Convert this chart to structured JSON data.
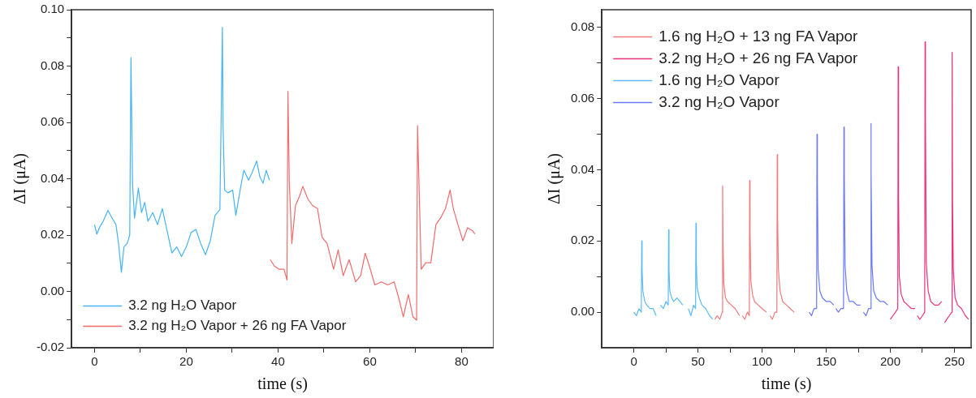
{
  "chart_data": [
    {
      "type": "line",
      "xlabel": "time (s)",
      "ylabel": "ΔI (μA)",
      "xlim": [
        -5,
        87
      ],
      "ylim": [
        -0.02,
        0.1
      ],
      "xticks": [
        0,
        {
          "value": 10,
          "label": null
        },
        20,
        {
          "value": 30,
          "label": null
        },
        40,
        {
          "value": 50,
          "label": null
        },
        60,
        {
          "value": 70,
          "label": null
        },
        80
      ],
      "yticks": [
        {
          "value": -0.02,
          "label": "-0.02"
        },
        {
          "value": -0.01,
          "label": null
        },
        {
          "value": 0,
          "label": "0.00"
        },
        {
          "value": 0.01,
          "label": null
        },
        {
          "value": 0.02,
          "label": "0.02"
        },
        {
          "value": 0.03,
          "label": null
        },
        {
          "value": 0.04,
          "label": "0.04"
        },
        {
          "value": 0.05,
          "label": null
        },
        {
          "value": 0.06,
          "label": "0.06"
        },
        {
          "value": 0.07,
          "label": null
        },
        {
          "value": 0.08,
          "label": "0.08"
        },
        {
          "value": 0.09,
          "label": null
        },
        {
          "value": 0.1,
          "label": "0.10"
        }
      ],
      "grid": false,
      "legend": "bottom left",
      "marker": "none",
      "line_style": "solid",
      "series": [
        {
          "name": "3.2 ng H₂O Vapor",
          "color": "#45b4f5",
          "x": [
            0,
            0.49,
            1.18,
            1.88,
            2.93,
            3.62,
            4.67,
            5.23,
            5.85,
            6.41,
            7.11,
            7.67,
            7.94,
            8.08,
            8.29,
            8.71,
            9.55,
            10.24,
            10.94,
            11.64,
            12.68,
            13.73,
            14.77,
            15.82,
            16.86,
            17.91,
            18.95,
            20,
            21.05,
            22.09,
            23.14,
            24.18,
            25.23,
            26.27,
            27.32,
            27.87,
            28.01,
            28.36,
            29.06,
            30.1,
            30.8,
            31.85,
            32.54,
            33.59,
            34.29,
            35.33,
            36.03,
            36.72,
            37.42,
            38.12
          ],
          "values": [
            0.0237,
            0.0203,
            0.023,
            0.0249,
            0.0288,
            0.0266,
            0.0237,
            0.017,
            0.0068,
            0.0158,
            0.017,
            0.02,
            0.083,
            0.0644,
            0.038,
            0.026,
            0.0367,
            0.028,
            0.0316,
            0.0249,
            0.028,
            0.0237,
            0.0294,
            0.0215,
            0.0136,
            0.0158,
            0.0124,
            0.0158,
            0.0209,
            0.022,
            0.017,
            0.013,
            0.018,
            0.027,
            0.029,
            0.0938,
            0.0588,
            0.036,
            0.035,
            0.036,
            0.027,
            0.037,
            0.043,
            0.0395,
            0.042,
            0.0463,
            0.0407,
            0.0384,
            0.043,
            0.0395
          ]
        },
        {
          "name": "3.2 ng H₂O Vapor + 26 ng FA Vapor",
          "color": "#f26c6c",
          "x": [
            38.3,
            39.2,
            40.2,
            41.3,
            41.95,
            42.16,
            42.44,
            43,
            43.8,
            44.7,
            45.4,
            46.5,
            47.5,
            48.6,
            49.6,
            50.7,
            52.1,
            53.1,
            54.2,
            55.5,
            56.9,
            58,
            59,
            60.1,
            61.1,
            62.5,
            63.9,
            65.3,
            66.3,
            67.3,
            68.4,
            69.4,
            70.2,
            70.4,
            70.7,
            71.2,
            72.2,
            73.3,
            74.4,
            75.4,
            76.5,
            77.5,
            78.2,
            79.2,
            80.3,
            81.3,
            82.4,
            82.9
          ],
          "values": [
            0.0113,
            0.009,
            0.0079,
            0.0079,
            0.004,
            0.071,
            0.0395,
            0.017,
            0.0305,
            0.0339,
            0.0373,
            0.0328,
            0.0305,
            0.0294,
            0.0192,
            0.017,
            0.0079,
            0.0147,
            0.0056,
            0.0113,
            0.0034,
            0.0056,
            0.0136,
            0.0079,
            0.0023,
            0.0034,
            0.0023,
            0.0034,
            -0.0023,
            -0.009,
            -0.0011,
            -0.009,
            -0.0102,
            0.0588,
            0.0395,
            0.0079,
            0.0102,
            0.0102,
            0.0237,
            0.026,
            0.0294,
            0.036,
            0.0294,
            0.0237,
            0.018,
            0.0226,
            0.0215,
            0.0204
          ]
        }
      ]
    },
    {
      "type": "line",
      "xlabel": "time (s)",
      "ylabel": "ΔI (μA)",
      "xlim": [
        -25,
        263
      ],
      "ylim": [
        -0.01,
        0.085
      ],
      "xticks": [
        0,
        {
          "value": 25,
          "label": null
        },
        50,
        {
          "value": 75,
          "label": null
        },
        100,
        {
          "value": 125,
          "label": null
        },
        150,
        {
          "value": 175,
          "label": null
        },
        200,
        {
          "value": 225,
          "label": null
        },
        250
      ],
      "yticks": [
        {
          "value": 0,
          "label": "0.00"
        },
        {
          "value": 0.01,
          "label": null
        },
        {
          "value": 0.02,
          "label": "0.02"
        },
        {
          "value": 0.03,
          "label": null
        },
        {
          "value": 0.04,
          "label": "0.04"
        },
        {
          "value": 0.05,
          "label": null
        },
        {
          "value": 0.06,
          "label": "0.06"
        },
        {
          "value": 0.07,
          "label": null
        },
        {
          "value": 0.08,
          "label": "0.08"
        }
      ],
      "grid": false,
      "legend": "top left",
      "marker": "none",
      "line_style": "solid",
      "series": [
        {
          "name": "1.6 ng H₂O + 13 ng FA Vapor",
          "color": "#f47a7a",
          "x": [
            63.1,
            65,
            67,
            68.9,
            69.2,
            69.5,
            70.1,
            71.5,
            73,
            76,
            79,
            82.4,
            83.5,
            84.6,
            86.5,
            88.5,
            90,
            90.3,
            90.6,
            91.2,
            92.5,
            94,
            97,
            100,
            103.4,
            104.7,
            106.1,
            108,
            110,
            111.5,
            111.8,
            112.1,
            112.7,
            114,
            116,
            119,
            122,
            124.9
          ],
          "values": [
            -0.002,
            -0.001,
            -0.002,
            0,
            0.0355,
            0.02,
            0.008,
            0.004,
            0.003,
            0.002,
            0.001,
            -0.001,
            null,
            -0.001,
            -0.002,
            0,
            -0.001,
            0.037,
            0.022,
            0.009,
            0.005,
            0.003,
            0.002,
            0.001,
            0,
            null,
            -0.001,
            -0.002,
            0,
            0,
            0.0443,
            0.026,
            0.012,
            0.006,
            0.003,
            0.002,
            0.001,
            0
          ]
        },
        {
          "name": "3.2 ng H₂O + 26 ng FA Vapor",
          "color": "#f0307e",
          "x": [
            200,
            202,
            204,
            205.8,
            206.1,
            206.4,
            207,
            208.5,
            210.5,
            213.5,
            216.5,
            219.2,
            220.1,
            221,
            223,
            225,
            226.8,
            227.1,
            227.4,
            228,
            229.5,
            231.5,
            234.5,
            237.5,
            240,
            241.2,
            242.3,
            244,
            246,
            247.9,
            248.2,
            248.5,
            249.1,
            250.5,
            252.5,
            255.5,
            258.5,
            261
          ],
          "values": [
            -0.002,
            -0.001,
            0,
            0.001,
            0.069,
            0.033,
            0.01,
            0.005,
            0.003,
            0.002,
            0.001,
            0.001,
            null,
            -0.001,
            -0.002,
            -0.001,
            0,
            0.076,
            0.054,
            0.014,
            0.006,
            0.003,
            0.002,
            0.002,
            0.003,
            null,
            -0.003,
            -0.002,
            -0.001,
            0,
            0.073,
            0.031,
            0.012,
            0.004,
            0.002,
            0.001,
            -0.001,
            -0.002
          ]
        },
        {
          "name": "1.6 ng H₂O Vapor",
          "color": "#5bbcf5",
          "x": [
            0,
            2,
            4,
            5.8,
            6.1,
            6.4,
            7,
            8.5,
            10,
            12.5,
            15,
            17.4,
            19,
            20.6,
            23,
            25,
            26.8,
            27.1,
            27.4,
            28,
            29.5,
            31,
            33.5,
            36,
            38,
            40,
            42.5,
            44.5,
            46.5,
            48.1,
            48.4,
            48.7,
            49.3,
            51,
            53,
            56,
            59,
            61.5
          ],
          "values": [
            0,
            -0.001,
            0.001,
            0,
            0.02,
            0.012,
            0.006,
            0.003,
            0.002,
            0.001,
            0.001,
            -0.001,
            null,
            0.002,
            0.001,
            0.003,
            0.002,
            0.0232,
            0.012,
            0.006,
            0.004,
            0.003,
            0.004,
            0.003,
            0.002,
            null,
            0.001,
            -0.001,
            0.002,
            0.001,
            0.025,
            0.014,
            0.007,
            0.004,
            0.002,
            0.001,
            -0.001,
            -0.002
          ]
        },
        {
          "name": "3.2 ng H₂O Vapor",
          "color": "#6a7af5",
          "x": [
            136.7,
            138.5,
            140.5,
            142.5,
            142.8,
            143.1,
            143.7,
            145,
            147,
            150,
            153,
            155.9,
            156.7,
            157.5,
            159.5,
            161.5,
            163.5,
            163.8,
            164.1,
            164.7,
            166,
            168,
            171,
            174,
            176.7,
            177.8,
            179,
            181,
            183,
            184.5,
            184.8,
            185.1,
            185.7,
            187,
            189,
            192,
            195,
            198
          ],
          "values": [
            0,
            -0.001,
            0.001,
            0.001,
            0.05,
            0.037,
            0.012,
            0.006,
            0.004,
            0.003,
            0.003,
            0.002,
            null,
            0.001,
            0,
            0.001,
            0.001,
            0.052,
            0.038,
            0.013,
            0.006,
            0.003,
            0.003,
            0.002,
            0.002,
            null,
            0,
            -0.001,
            0.001,
            0.001,
            0.053,
            0.04,
            0.013,
            0.006,
            0.004,
            0.003,
            0.003,
            0.002
          ]
        }
      ]
    }
  ]
}
